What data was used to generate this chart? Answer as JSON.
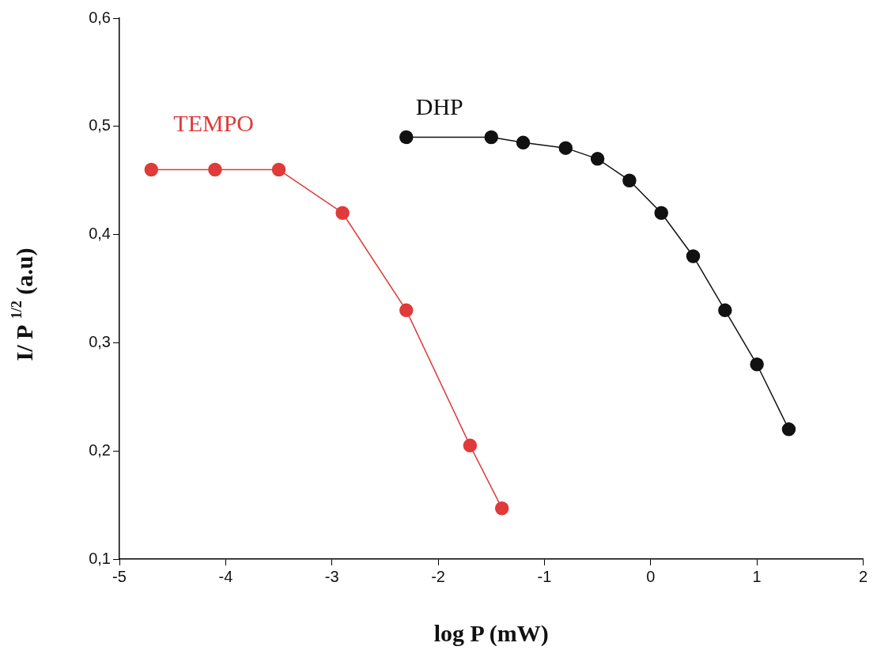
{
  "chart_data": {
    "type": "line",
    "xlabel": "log P (mW)",
    "ylabel": "I/ P $^{1/2}$ (a.u)",
    "xlim": [
      -5,
      2
    ],
    "xticks": [
      -5,
      -4,
      -3,
      -2,
      -1,
      0,
      1,
      2
    ],
    "ylim": [
      0.1,
      0.6
    ],
    "yticks": [
      {
        "value": 0.1,
        "label": "0,1"
      },
      {
        "value": 0.2,
        "label": "0,2"
      },
      {
        "value": 0.3,
        "label": "0,3"
      },
      {
        "value": 0.4,
        "label": "0,4"
      },
      {
        "value": 0.5,
        "label": "0,5"
      },
      {
        "value": 0.6,
        "label": "0,6"
      }
    ],
    "grid": false,
    "legend": false,
    "marker": "circle",
    "line_style": "solid",
    "series": [
      {
        "name": "TEMPO",
        "color": "#e03a3a",
        "x": [
          -4.7,
          -4.1,
          -3.5,
          -2.9,
          -2.3,
          -1.7,
          -1.4
        ],
        "values": [
          0.46,
          0.46,
          0.46,
          0.42,
          0.33,
          0.205,
          0.147
        ]
      },
      {
        "name": "DHP",
        "color": "#111111",
        "x": [
          -2.3,
          -1.5,
          -1.2,
          -0.8,
          -0.5,
          -0.2,
          0.1,
          0.4,
          0.7,
          1.0,
          1.3
        ],
        "values": [
          0.49,
          0.49,
          0.485,
          0.48,
          0.47,
          0.45,
          0.42,
          0.38,
          0.33,
          0.28,
          0.22
        ]
      }
    ]
  }
}
